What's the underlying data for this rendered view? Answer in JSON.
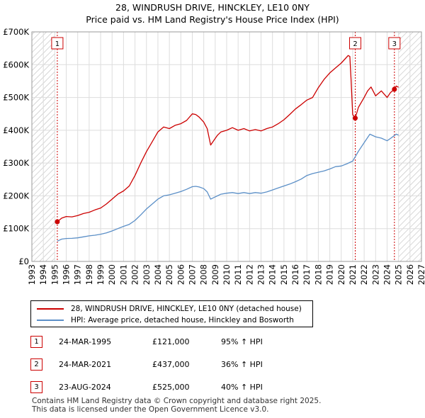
{
  "title_line1": "28, WINDRUSH DRIVE, HINCKLEY, LE10 0NY",
  "title_line2": "Price paid vs. HM Land Registry's House Price Index (HPI)",
  "colors": {
    "property": "#cc0000",
    "hpi": "#5b8fc7",
    "marker": "#cc0000",
    "hatch": "#bbbbbb",
    "grid": "#dddddd"
  },
  "chart_data": {
    "type": "line",
    "title": "Price paid vs. HM Land Registry's House Price Index (HPI)",
    "xlabel": "",
    "ylabel": "",
    "xlim": [
      1993,
      2027
    ],
    "ylim": [
      0,
      700000
    ],
    "xticks": [
      1993,
      1994,
      1995,
      1996,
      1997,
      1998,
      1999,
      2000,
      2001,
      2002,
      2003,
      2004,
      2005,
      2006,
      2007,
      2008,
      2009,
      2010,
      2011,
      2012,
      2013,
      2014,
      2015,
      2016,
      2017,
      2018,
      2019,
      2020,
      2021,
      2022,
      2023,
      2024,
      2025,
      2026,
      2027
    ],
    "yticks": [
      0,
      100000,
      200000,
      300000,
      400000,
      500000,
      600000,
      700000
    ],
    "ytick_labels": [
      "£0",
      "£100K",
      "£200K",
      "£300K",
      "£400K",
      "£500K",
      "£600K",
      "£700K"
    ],
    "hatched_regions": [
      [
        1993,
        1995.0
      ],
      [
        2025.0,
        2027
      ]
    ],
    "series": [
      {
        "name": "28, WINDRUSH DRIVE, HINCKLEY, LE10 0NY (detached house)",
        "x": [
          1995.22,
          1995.6,
          1996,
          1996.5,
          1997,
          1997.5,
          1998,
          1998.5,
          1999,
          1999.5,
          2000,
          2000.5,
          2001,
          2001.5,
          2002,
          2002.5,
          2003,
          2003.5,
          2004,
          2004.5,
          2005,
          2005.5,
          2006,
          2006.5,
          2007,
          2007.3,
          2007.6,
          2008,
          2008.3,
          2008.6,
          2008.9,
          2009.2,
          2009.5,
          2010,
          2010.5,
          2011,
          2011.5,
          2012,
          2012.5,
          2013,
          2013.5,
          2014,
          2014.5,
          2015,
          2015.5,
          2016,
          2016.5,
          2017,
          2017.5,
          2018,
          2018.5,
          2019,
          2019.5,
          2020,
          2020.4,
          2020.6,
          2020.75,
          2020.85,
          2021.0,
          2021.22,
          2021.5,
          2022,
          2022.3,
          2022.6,
          2023,
          2023.5,
          2024,
          2024.3,
          2024.64,
          2024.8,
          2025.0
        ],
        "y": [
          121000,
          132000,
          137000,
          136000,
          140000,
          146000,
          150000,
          157000,
          163000,
          175000,
          190000,
          205000,
          215000,
          230000,
          262000,
          300000,
          335000,
          365000,
          395000,
          410000,
          405000,
          415000,
          420000,
          430000,
          450000,
          448000,
          440000,
          425000,
          405000,
          355000,
          370000,
          385000,
          395000,
          400000,
          408000,
          400000,
          405000,
          398000,
          402000,
          398000,
          405000,
          410000,
          420000,
          432000,
          448000,
          465000,
          478000,
          492000,
          500000,
          530000,
          555000,
          575000,
          590000,
          605000,
          620000,
          628000,
          625000,
          560000,
          448000,
          437000,
          470000,
          500000,
          520000,
          532000,
          505000,
          520000,
          500000,
          515000,
          525000,
          535000,
          531000
        ]
      },
      {
        "name": "HPI: Average price, detached house, Hinckley and Bosworth",
        "x": [
          1995.22,
          1995.6,
          1996,
          1996.5,
          1997,
          1997.5,
          1998,
          1998.5,
          1999,
          1999.5,
          2000,
          2000.5,
          2001,
          2001.5,
          2002,
          2002.5,
          2003,
          2003.5,
          2004,
          2004.5,
          2005,
          2005.5,
          2006,
          2006.5,
          2007,
          2007.3,
          2007.6,
          2008,
          2008.3,
          2008.6,
          2008.9,
          2009.2,
          2009.5,
          2010,
          2010.5,
          2011,
          2011.5,
          2012,
          2012.5,
          2013,
          2013.5,
          2014,
          2014.5,
          2015,
          2015.5,
          2016,
          2016.5,
          2017,
          2017.5,
          2018,
          2018.5,
          2019,
          2019.5,
          2020,
          2020.5,
          2021,
          2021.22,
          2021.5,
          2022,
          2022.5,
          2023,
          2023.5,
          2024,
          2024.3,
          2024.64,
          2024.8,
          2025.0
        ],
        "y": [
          62000,
          68000,
          70000,
          70500,
          72000,
          75000,
          78000,
          80000,
          83000,
          87000,
          93000,
          100000,
          107000,
          113000,
          125000,
          142000,
          160000,
          175000,
          190000,
          200000,
          203000,
          208000,
          213000,
          220000,
          228000,
          229000,
          227000,
          222000,
          212000,
          190000,
          195000,
          200000,
          205000,
          208000,
          210000,
          207000,
          210000,
          207000,
          210000,
          208000,
          212000,
          218000,
          224000,
          230000,
          236000,
          243000,
          251000,
          262000,
          268000,
          272000,
          276000,
          282000,
          289000,
          291000,
          298000,
          306000,
          319000,
          336000,
          362000,
          388000,
          380000,
          376000,
          368000,
          375000,
          384000,
          388000,
          385000
        ]
      }
    ],
    "sale_markers": [
      {
        "label": "1",
        "x": 1995.22,
        "y": 121000
      },
      {
        "label": "2",
        "x": 2021.22,
        "y": 437000
      },
      {
        "label": "3",
        "x": 2024.64,
        "y": 525000
      }
    ]
  },
  "legend": {
    "property_label": "28, WINDRUSH DRIVE, HINCKLEY, LE10 0NY (detached house)",
    "hpi_label": "HPI: Average price, detached house, Hinckley and Bosworth"
  },
  "sales": [
    {
      "num": "1",
      "date": "24-MAR-1995",
      "price": "£121,000",
      "hpi": "95% ↑ HPI"
    },
    {
      "num": "2",
      "date": "24-MAR-2021",
      "price": "£437,000",
      "hpi": "36% ↑ HPI"
    },
    {
      "num": "3",
      "date": "23-AUG-2024",
      "price": "£525,000",
      "hpi": "40% ↑ HPI"
    }
  ],
  "footer": {
    "line1": "Contains HM Land Registry data © Crown copyright and database right 2025.",
    "line2": "This data is licensed under the Open Government Licence v3.0."
  }
}
